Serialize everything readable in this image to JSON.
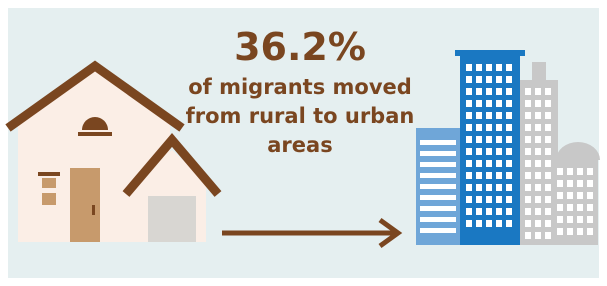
{
  "headline": "36.2%",
  "caption": [
    "of migrants moved",
    "from rural to urban",
    "areas"
  ]
}
